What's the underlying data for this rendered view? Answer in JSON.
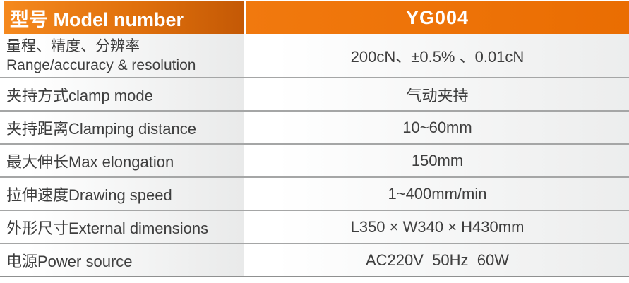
{
  "title": "YG004 specification table",
  "colors": {
    "header_orange_left_start": "#F5891E",
    "header_orange_left_end": "#C45905",
    "header_orange_right": "#EC7108",
    "row_gradient_start": "#FFFFFF",
    "row_gradient_end": "#E9EAEA",
    "separator_gray": "#A5A6A6",
    "text_dark": "#3E3E3E",
    "header_text": "#FFFFFF"
  },
  "header": {
    "model_label": "型号 Model number",
    "model_value": "YG004"
  },
  "rows": [
    {
      "label_cn": "量程、精度、分辨率",
      "label_en": "Range/accuracy & resolution",
      "value": "200cN、±0.5% 、0.01cN"
    },
    {
      "label": "夹持方式clamp mode",
      "value": "气动夹持"
    },
    {
      "label": "夹持距离Clamping distance",
      "value": "10~60mm"
    },
    {
      "label": "最大伸长Max elongation",
      "value": "150mm"
    },
    {
      "label": "拉伸速度Drawing speed",
      "value": "1~400mm/min"
    },
    {
      "label": "外形尺寸External dimensions",
      "value": "L350 × W340 × H430mm"
    },
    {
      "label": "电源Power source",
      "value": "AC220V  50Hz  60W"
    }
  ]
}
